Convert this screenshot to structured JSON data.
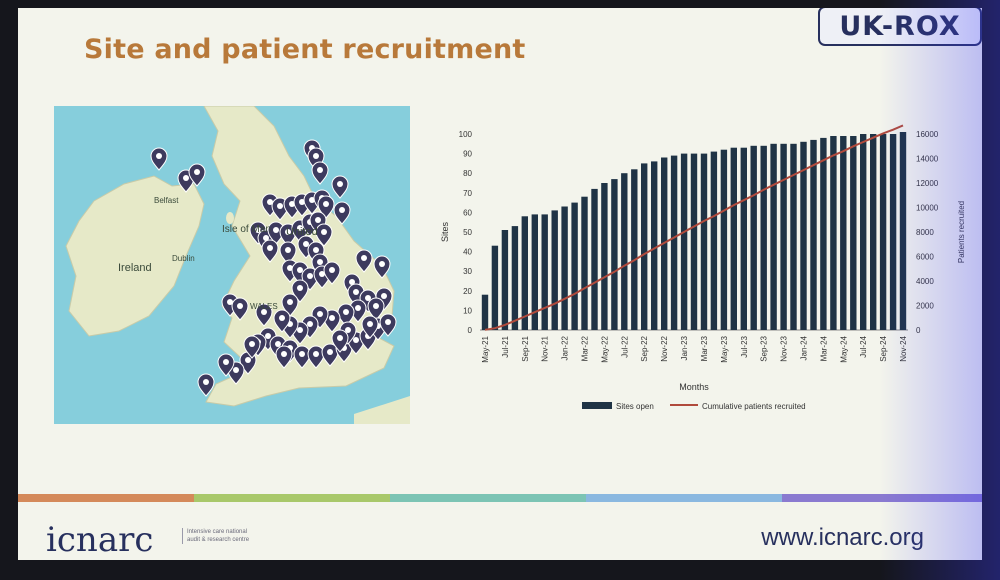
{
  "slide": {
    "title": "Site and patient recruitment",
    "logo": "UK-ROX",
    "footer_logo": "icnarc",
    "footer_desc": "Intensive care national audit & research centre",
    "footer_url": "www.icnarc.org"
  },
  "map": {
    "labels": {
      "ireland": "Ireland",
      "isle_of_man": "Isle of Man",
      "united_kingdom": "United",
      "wales": "WALES",
      "dublin": "Dublin",
      "belfast": "Belfast"
    }
  },
  "colors": {
    "bars": "#1f3345",
    "line": "#b04a3c",
    "title": "#b8793a",
    "brand": "#27305e"
  },
  "chart_data": {
    "type": "bar",
    "xlabel": "Months",
    "ylabel": "Sites",
    "y2label": "Patients recruited",
    "ylim": [
      0,
      100
    ],
    "y2lim": [
      0,
      16000
    ],
    "yticks": [
      0,
      10,
      20,
      30,
      40,
      50,
      60,
      70,
      80,
      90,
      100
    ],
    "y2ticks": [
      0,
      2000,
      4000,
      6000,
      8000,
      10000,
      12000,
      14000,
      16000
    ],
    "x_tick_labels": [
      "May-21",
      "Jul-21",
      "Sep-21",
      "Nov-21",
      "Jan-22",
      "Mar-22",
      "May-22",
      "Jul-22",
      "Sep-22",
      "Nov-22",
      "Jan-23",
      "Mar-23",
      "May-23",
      "Jul-23",
      "Sep-23",
      "Nov-23",
      "Jan-24",
      "Mar-24",
      "May-24",
      "Jul-24",
      "Sep-24",
      "Nov-24"
    ],
    "categories": [
      "May-21",
      "Jun-21",
      "Jul-21",
      "Aug-21",
      "Sep-21",
      "Oct-21",
      "Nov-21",
      "Dec-21",
      "Jan-22",
      "Feb-22",
      "Mar-22",
      "Apr-22",
      "May-22",
      "Jun-22",
      "Jul-22",
      "Aug-22",
      "Sep-22",
      "Oct-22",
      "Nov-22",
      "Dec-22",
      "Jan-23",
      "Feb-23",
      "Mar-23",
      "Apr-23",
      "May-23",
      "Jun-23",
      "Jul-23",
      "Aug-23",
      "Sep-23",
      "Oct-23",
      "Nov-23",
      "Dec-23",
      "Jan-24",
      "Feb-24",
      "Mar-24",
      "Apr-24",
      "May-24",
      "Jun-24",
      "Jul-24",
      "Aug-24",
      "Sep-24",
      "Oct-24",
      "Nov-24"
    ],
    "series": [
      {
        "name": "Sites open",
        "type": "bar",
        "axis": "left",
        "values": [
          18,
          43,
          51,
          53,
          58,
          59,
          59,
          61,
          63,
          65,
          68,
          72,
          75,
          77,
          80,
          82,
          85,
          86,
          88,
          89,
          90,
          90,
          90,
          91,
          92,
          93,
          93,
          94,
          94,
          95,
          95,
          95,
          96,
          97,
          98,
          99,
          99,
          99,
          100,
          100,
          100,
          100,
          101
        ]
      },
      {
        "name": "Cumulative patients recruited",
        "type": "line",
        "axis": "right",
        "values": [
          20,
          150,
          420,
          750,
          1100,
          1450,
          1800,
          2150,
          2550,
          2950,
          3400,
          3850,
          4300,
          4750,
          5250,
          5700,
          6200,
          6650,
          7100,
          7550,
          8000,
          8450,
          8900,
          9300,
          9750,
          10200,
          10600,
          11000,
          11450,
          11850,
          12250,
          12650,
          13050,
          13450,
          13850,
          14250,
          14600,
          15000,
          15350,
          15700,
          16050,
          16350,
          16700
        ]
      }
    ],
    "legend_position": "bottom",
    "grid": false
  }
}
